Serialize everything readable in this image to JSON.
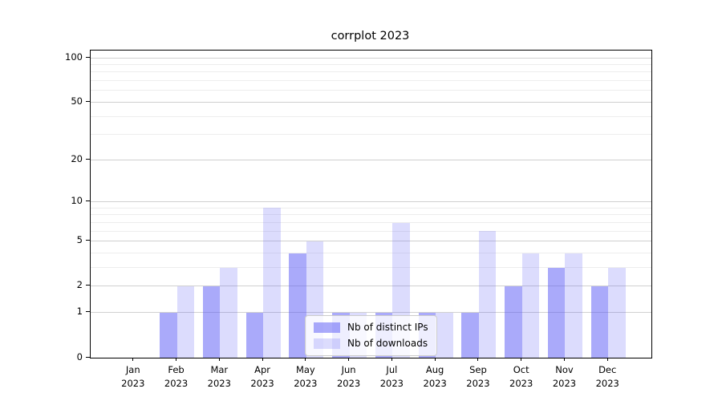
{
  "title": "corrplot 2023",
  "chart_data": {
    "type": "bar",
    "title": "corrplot 2023",
    "categories": [
      "Jan",
      "Feb",
      "Mar",
      "Apr",
      "May",
      "Jun",
      "Jul",
      "Aug",
      "Sep",
      "Oct",
      "Nov",
      "Dec"
    ],
    "category_year": "2023",
    "series": [
      {
        "name": "Nb of distinct IPs",
        "color": "rgba(92,92,245,0.52)",
        "values": [
          0,
          1,
          2,
          1,
          4,
          1,
          1,
          1,
          1,
          2,
          3,
          2
        ]
      },
      {
        "name": "Nb of downloads",
        "color": "rgba(92,92,245,0.21)",
        "values": [
          0,
          2,
          3,
          9,
          5,
          1,
          7,
          1,
          6,
          4,
          4,
          3
        ]
      }
    ],
    "xlabel": "",
    "ylabel": "",
    "y_scale": "log1p",
    "y_axis_max": 112,
    "y_major_ticks": [
      0,
      1,
      2,
      5,
      10,
      20,
      50,
      100
    ],
    "y_minor_ticks": [
      3,
      4,
      6,
      7,
      8,
      9,
      30,
      40,
      60,
      70,
      80,
      90
    ],
    "grid": true,
    "legend_position": "inside-bottom-center",
    "colors": {
      "grid_major": "#d0d0d0",
      "grid_minor": "#ededed",
      "axis": "#000000",
      "background": "#ffffff"
    }
  }
}
